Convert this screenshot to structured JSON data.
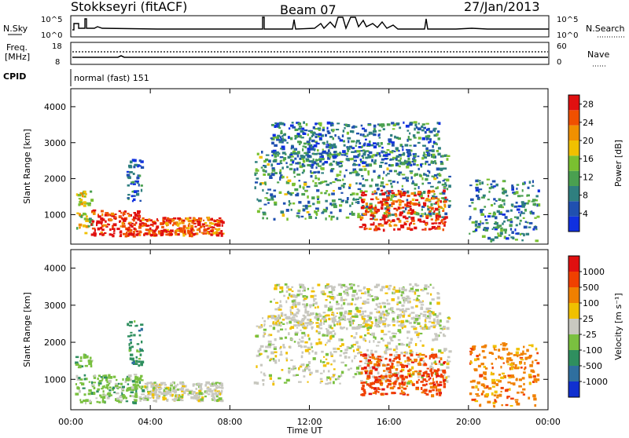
{
  "header": {
    "station": "Stokkseyri (fitACF)",
    "beam": "Beam 07",
    "date": "27/Jan/2013"
  },
  "panels": {
    "nsky": {
      "left_label": "N.Sky",
      "left_ticks": [
        "10^5",
        "10^0"
      ],
      "right_label": "N.Search",
      "right_ticks": [
        "10^5",
        "10^0"
      ]
    },
    "freq": {
      "left_label_line1": "Freq.",
      "left_label_line2": "[MHz]",
      "left_ticks": [
        "18",
        "8"
      ],
      "right_label": "Nave",
      "right_ticks": [
        "60",
        "0"
      ]
    },
    "cpid": {
      "label": "CPID",
      "value": "normal (fast) 151"
    }
  },
  "chart_data": [
    {
      "type": "heatmap",
      "quantity": "Power",
      "ylabel": "Slant Range [km]",
      "xlabel": "",
      "ylim": [
        180,
        4500
      ],
      "yticks": [
        1000,
        2000,
        3000,
        4000
      ],
      "xticks": [
        "00:00",
        "04:00",
        "08:00",
        "12:00",
        "16:00",
        "20:00",
        "00:00"
      ],
      "colorbar": {
        "label": "Power [dB]",
        "ticks": [
          4,
          8,
          12,
          16,
          20,
          24,
          28
        ],
        "colors": [
          "#1030e0",
          "#2050b0",
          "#2f7f7f",
          "#4aa050",
          "#7ac030",
          "#f0c000",
          "#f09000",
          "#f05000",
          "#e01010"
        ],
        "range": [
          0,
          30
        ]
      },
      "regions": [
        {
          "t0": 0.2,
          "t1": 1.0,
          "r0": 500,
          "r1": 1700,
          "level": 0.55
        },
        {
          "t0": 1.0,
          "t1": 3.4,
          "r0": 400,
          "r1": 1150,
          "level": 0.95
        },
        {
          "t0": 3.4,
          "t1": 7.6,
          "r0": 450,
          "r1": 950,
          "level": 0.85
        },
        {
          "t0": 9.2,
          "t1": 19.0,
          "r0": 900,
          "r1": 2800,
          "level": 0.35
        },
        {
          "t0": 10.0,
          "t1": 18.5,
          "r0": 2400,
          "r1": 3600,
          "level": 0.25
        },
        {
          "t0": 14.5,
          "t1": 18.8,
          "r0": 600,
          "r1": 1700,
          "level": 0.9
        },
        {
          "t0": 20.0,
          "t1": 23.5,
          "r0": 300,
          "r1": 2000,
          "level": 0.3
        },
        {
          "t0": 2.8,
          "t1": 3.6,
          "r0": 1400,
          "r1": 2600,
          "level": 0.2
        }
      ]
    },
    {
      "type": "heatmap",
      "quantity": "Velocity",
      "ylabel": "Slant Range [km]",
      "xlabel": "Time UT",
      "ylim": [
        180,
        4500
      ],
      "yticks": [
        1000,
        2000,
        3000,
        4000
      ],
      "xticks": [
        "00:00",
        "04:00",
        "08:00",
        "12:00",
        "16:00",
        "20:00",
        "00:00"
      ],
      "colorbar": {
        "label": "Velocity [m s⁻¹]",
        "ticks": [
          "1000",
          "500",
          "100",
          "25",
          "-25",
          "-100",
          "-500",
          "-1000"
        ],
        "colors": [
          "#1030d0",
          "#2f6f9f",
          "#2f8f5f",
          "#7ac040",
          "#c8c8c0",
          "#f0c000",
          "#f08000",
          "#f04000",
          "#e01010"
        ]
      },
      "regions": [
        {
          "t0": 0.2,
          "t1": 1.0,
          "r0": 400,
          "r1": 1700,
          "level": 3
        },
        {
          "t0": 1.0,
          "t1": 3.6,
          "r0": 400,
          "r1": 1150,
          "level": 3
        },
        {
          "t0": 3.6,
          "t1": 7.6,
          "r0": 450,
          "r1": 950,
          "level": 4
        },
        {
          "t0": 9.2,
          "t1": 19.0,
          "r0": 900,
          "r1": 2800,
          "level": 4
        },
        {
          "t0": 10.0,
          "t1": 18.5,
          "r0": 2400,
          "r1": 3600,
          "level": 4
        },
        {
          "t0": 14.5,
          "t1": 18.8,
          "r0": 600,
          "r1": 1700,
          "level": 7
        },
        {
          "t0": 20.0,
          "t1": 23.5,
          "r0": 300,
          "r1": 2000,
          "level": 6
        },
        {
          "t0": 2.8,
          "t1": 3.6,
          "r0": 1400,
          "r1": 2600,
          "level": 2
        }
      ]
    }
  ]
}
